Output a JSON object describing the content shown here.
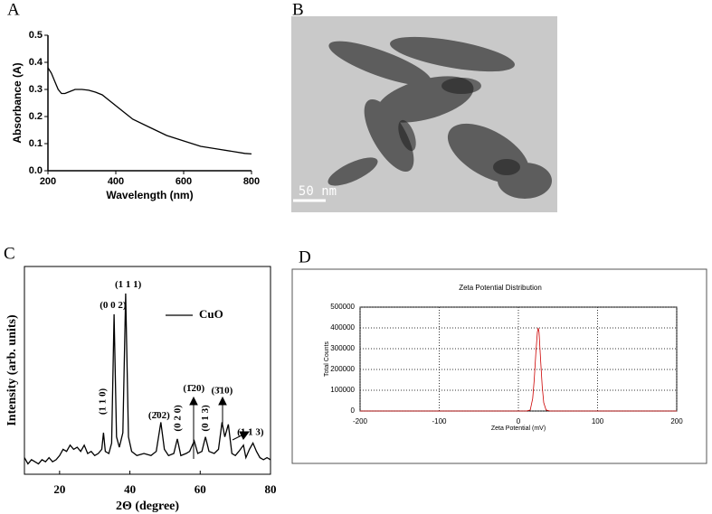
{
  "chart_data": [
    {
      "type": "line",
      "panel": "A",
      "xlabel": "Wavelength (nm)",
      "ylabel": "Absorbance (A)",
      "color": "#000000",
      "x": [
        200,
        210,
        220,
        230,
        240,
        250,
        260,
        280,
        300,
        320,
        340,
        360,
        380,
        400,
        450,
        500,
        550,
        600,
        650,
        700,
        750,
        780,
        800
      ],
      "values": [
        0.38,
        0.36,
        0.33,
        0.3,
        0.285,
        0.285,
        0.29,
        0.3,
        0.3,
        0.297,
        0.29,
        0.28,
        0.26,
        0.24,
        0.19,
        0.16,
        0.13,
        0.11,
        0.09,
        0.08,
        0.07,
        0.064,
        0.062
      ],
      "xlim": [
        200,
        800
      ],
      "xticks": [
        200,
        400,
        600,
        800
      ],
      "ylim": [
        0,
        0.5
      ],
      "yticks": [
        {
          "value": 0,
          "label": "0.0"
        },
        0.1,
        0.2,
        0.3,
        0.4,
        0.5
      ]
    },
    {
      "type": "image",
      "panel": "B",
      "scale_bar": "50 nm"
    },
    {
      "type": "line",
      "panel": "C",
      "xlabel": "2Θ (degree)",
      "ylabel": "Intensity (arb. units)",
      "x": [
        10,
        11,
        12,
        13,
        14,
        15,
        16,
        17,
        18,
        19,
        20,
        21,
        22,
        23,
        24,
        25,
        26,
        27,
        28,
        29,
        30,
        31,
        32,
        32.5,
        33,
        34,
        34.8,
        35.5,
        36.2,
        37,
        38,
        38.8,
        39.6,
        40.5,
        42,
        44,
        46,
        47.5,
        48.8,
        49.8,
        51,
        52.5,
        53.5,
        54.5,
        56,
        57,
        58.3,
        59.3,
        60.5,
        61.5,
        62.5,
        64,
        65.2,
        66.2,
        67,
        68,
        69,
        70,
        71,
        72.3,
        73,
        74,
        75,
        76,
        77,
        78,
        79,
        80
      ],
      "series": [
        {
          "name": "CuO",
          "color": "#000000",
          "values": [
            8,
            5,
            7,
            6,
            5,
            7,
            6,
            8,
            6,
            7,
            9,
            12,
            11,
            14,
            12,
            13,
            11,
            14,
            10,
            11,
            9,
            10,
            12,
            20,
            11,
            10,
            15,
            77,
            18,
            13,
            20,
            87,
            18,
            11,
            9,
            10,
            9,
            11,
            25,
            12,
            9,
            10,
            17,
            9,
            10,
            11,
            16,
            10,
            11,
            18,
            11,
            10,
            12,
            25,
            18,
            24,
            10,
            9,
            11,
            14,
            8,
            12,
            15,
            11,
            8,
            7,
            8,
            7
          ]
        }
      ],
      "xlim": [
        10,
        80
      ],
      "xticks": [
        20,
        40,
        60,
        80
      ],
      "ylim": [
        0,
        100
      ],
      "annotations": [
        {
          "text": "(1 1 0)",
          "x": 32.4,
          "y": 35,
          "vertical": true
        },
        {
          "text": "(0 0 2)",
          "x": 35.2,
          "y": 81,
          "vertical": false
        },
        {
          "text": "(1 1 1)",
          "x": 39.5,
          "y": 91,
          "vertical": false
        },
        {
          "text": "(2̄02)",
          "x": 48.3,
          "y": 28,
          "vertical": false
        },
        {
          "text": "(0 2 0)",
          "x": 53.7,
          "y": 27,
          "vertical": true
        },
        {
          "text": "(1̄20)",
          "x": 58.2,
          "y": 41,
          "vertical": false
        },
        {
          "text": "(0 1 3)",
          "x": 61.6,
          "y": 27,
          "vertical": true
        },
        {
          "text": "(3̄10)",
          "x": 66.2,
          "y": 40,
          "vertical": false
        },
        {
          "text": "(1 1 3)",
          "x": 74.3,
          "y": 20,
          "vertical": false
        }
      ]
    },
    {
      "type": "line",
      "panel": "D",
      "title": "Zeta Potential Distribution",
      "xlabel": "Zeta Potential (mV)",
      "ylabel": "Total Counts",
      "color": "#cc0000",
      "grid": true,
      "x": [
        -200,
        0,
        10,
        15,
        18,
        20,
        22,
        24,
        25,
        26,
        28,
        30,
        32,
        35,
        40,
        200
      ],
      "values": [
        0,
        0,
        0,
        5000,
        60000,
        150000,
        280000,
        380000,
        400000,
        380000,
        250000,
        120000,
        40000,
        5000,
        0,
        0
      ],
      "xlim": [
        -200,
        200
      ],
      "xticks": [
        -200,
        -100,
        0,
        100,
        200
      ],
      "ylim": [
        0,
        500000
      ],
      "yticks": [
        0,
        100000,
        200000,
        300000,
        400000,
        500000
      ]
    }
  ]
}
